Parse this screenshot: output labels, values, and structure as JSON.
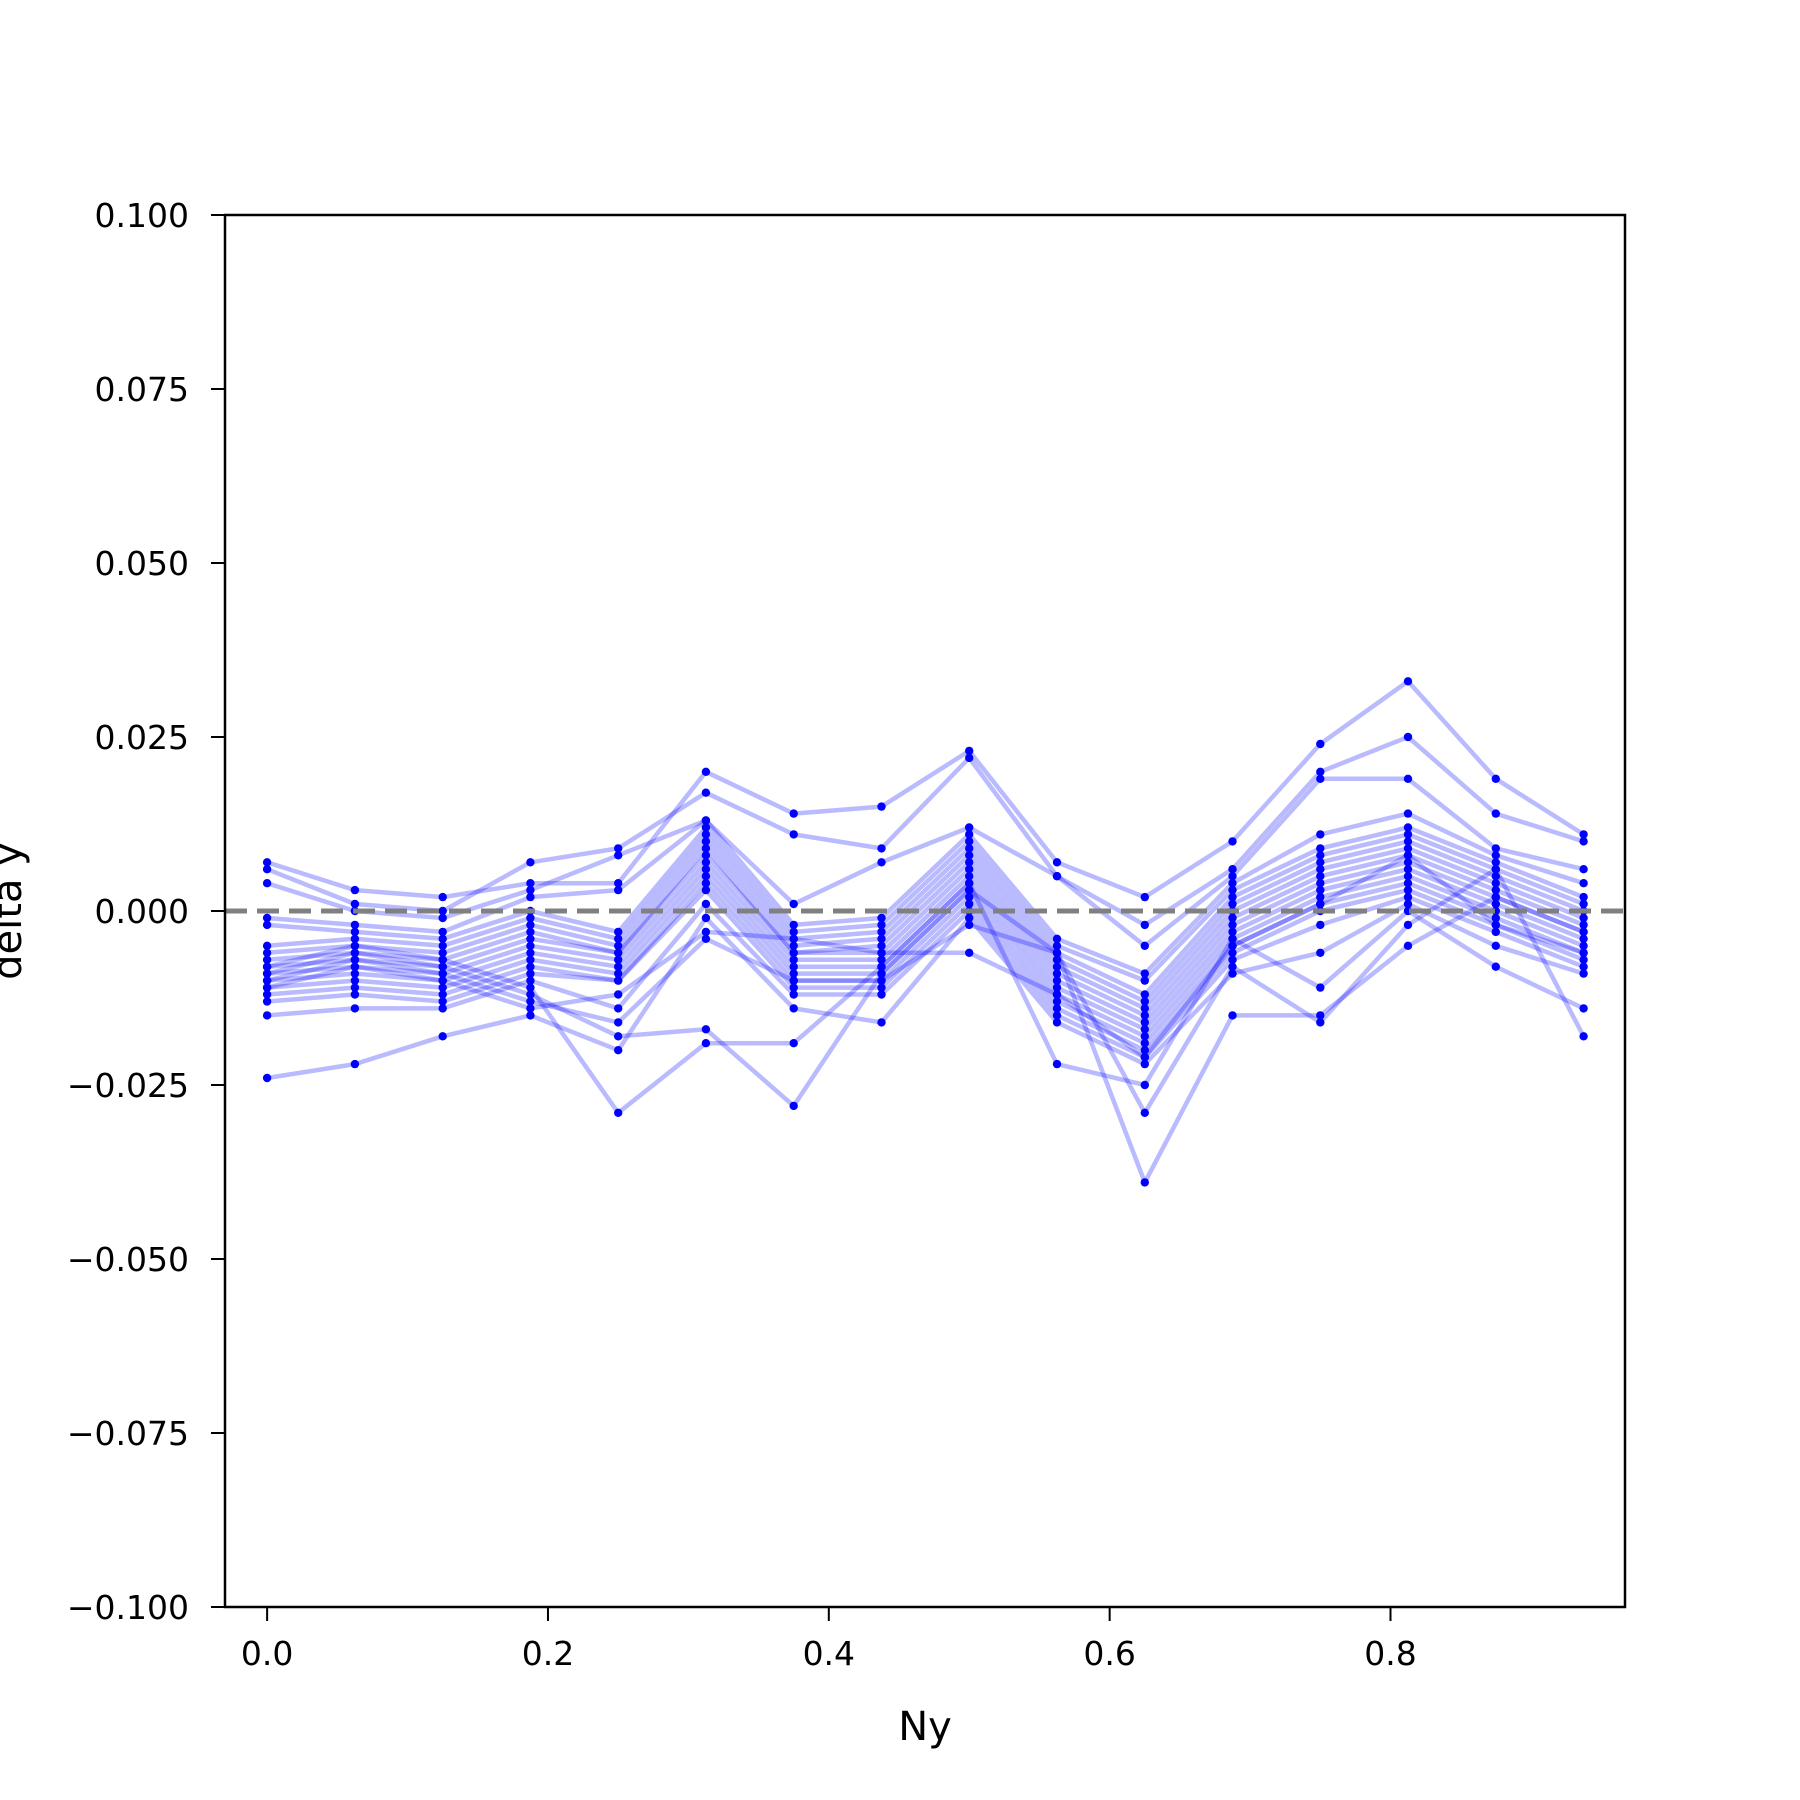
{
  "chart_data": {
    "type": "line",
    "title": "",
    "xlabel": "Ny",
    "ylabel": "delta y",
    "xlim": [
      -0.03,
      0.967
    ],
    "ylim": [
      -0.1,
      0.1
    ],
    "x_ticks": [
      0.0,
      0.2,
      0.4,
      0.6,
      0.8
    ],
    "x_tick_labels": [
      "0.0",
      "0.2",
      "0.4",
      "0.6",
      "0.8"
    ],
    "y_ticks": [
      0.1,
      0.075,
      0.05,
      0.025,
      0.0,
      -0.025,
      -0.05,
      -0.075,
      -0.1
    ],
    "y_tick_labels": [
      "0.100",
      "0.075",
      "0.050",
      "0.025",
      "0.000",
      "−0.025",
      "−0.050",
      "−0.075",
      "−0.100"
    ],
    "grid": false,
    "legend": "none",
    "reference_line": {
      "y": 0.0,
      "style": "dashed",
      "color": "#808080"
    },
    "series_color": "#0000ff",
    "x": [
      0.0,
      0.0625,
      0.125,
      0.1875,
      0.25,
      0.3125,
      0.375,
      0.4375,
      0.5,
      0.5625,
      0.625,
      0.6875,
      0.75,
      0.8125,
      0.875,
      0.9375
    ],
    "series": [
      {
        "values": [
          0.007,
          0.003,
          0.002,
          0.004,
          0.004,
          0.02,
          0.014,
          0.015,
          0.023,
          0.007,
          0.002,
          0.01,
          0.024,
          0.033,
          0.019,
          0.011
        ]
      },
      {
        "values": [
          0.006,
          0.001,
          0.0,
          0.007,
          0.009,
          0.017,
          0.011,
          0.009,
          0.022,
          0.005,
          -0.002,
          0.006,
          0.02,
          0.025,
          0.014,
          0.01
        ]
      },
      {
        "values": [
          0.004,
          0.0,
          -0.001,
          0.003,
          0.008,
          0.013,
          0.001,
          0.007,
          0.012,
          0.005,
          -0.005,
          0.005,
          0.019,
          0.019,
          0.009,
          0.006
        ]
      },
      {
        "values": [
          -0.001,
          -0.002,
          -0.003,
          0.002,
          0.003,
          0.013,
          -0.002,
          -0.001,
          0.011,
          -0.004,
          -0.009,
          0.004,
          0.011,
          0.014,
          0.008,
          0.004
        ]
      },
      {
        "values": [
          -0.002,
          -0.003,
          -0.004,
          0.0,
          -0.003,
          0.012,
          -0.003,
          -0.002,
          0.01,
          -0.005,
          -0.01,
          0.003,
          0.009,
          0.012,
          0.007,
          0.002
        ]
      },
      {
        "values": [
          -0.005,
          -0.004,
          -0.005,
          -0.001,
          -0.004,
          0.011,
          -0.004,
          -0.003,
          0.009,
          -0.006,
          -0.012,
          0.002,
          0.008,
          0.011,
          0.006,
          0.001
        ]
      },
      {
        "values": [
          -0.006,
          -0.005,
          -0.006,
          -0.002,
          -0.005,
          0.01,
          -0.005,
          -0.004,
          0.008,
          -0.007,
          -0.013,
          0.001,
          0.007,
          0.01,
          0.005,
          0.0
        ]
      },
      {
        "values": [
          -0.007,
          -0.006,
          -0.007,
          -0.003,
          -0.006,
          0.009,
          -0.006,
          -0.005,
          0.007,
          -0.008,
          -0.014,
          0.0,
          0.006,
          0.009,
          0.004,
          -0.001
        ]
      },
      {
        "values": [
          -0.008,
          -0.007,
          -0.008,
          -0.004,
          -0.006,
          0.008,
          -0.006,
          -0.006,
          0.006,
          -0.009,
          -0.015,
          -0.001,
          0.005,
          0.008,
          0.003,
          -0.002
        ]
      },
      {
        "values": [
          -0.009,
          -0.008,
          -0.009,
          -0.005,
          -0.007,
          0.007,
          -0.007,
          -0.007,
          0.005,
          -0.01,
          -0.016,
          -0.002,
          0.004,
          0.007,
          0.002,
          -0.003
        ]
      },
      {
        "values": [
          -0.01,
          -0.009,
          -0.01,
          -0.006,
          -0.008,
          0.006,
          -0.008,
          -0.008,
          0.004,
          -0.011,
          -0.017,
          -0.003,
          0.003,
          0.006,
          0.001,
          -0.004
        ]
      },
      {
        "values": [
          -0.011,
          -0.01,
          -0.011,
          -0.007,
          -0.009,
          0.005,
          -0.009,
          -0.009,
          0.003,
          -0.012,
          -0.018,
          -0.004,
          0.002,
          0.005,
          0.0,
          -0.005
        ]
      },
      {
        "values": [
          -0.012,
          -0.011,
          -0.012,
          -0.008,
          -0.01,
          0.004,
          -0.01,
          -0.01,
          0.002,
          -0.013,
          -0.019,
          -0.005,
          0.001,
          0.004,
          -0.001,
          -0.006
        ]
      },
      {
        "values": [
          -0.013,
          -0.012,
          -0.013,
          -0.009,
          -0.01,
          0.003,
          -0.011,
          -0.011,
          0.001,
          -0.014,
          -0.02,
          -0.006,
          0.0,
          0.003,
          -0.002,
          -0.007
        ]
      },
      {
        "values": [
          -0.015,
          -0.014,
          -0.014,
          -0.01,
          -0.014,
          0.001,
          -0.012,
          -0.012,
          0.0,
          -0.015,
          -0.021,
          -0.007,
          -0.002,
          0.002,
          -0.003,
          -0.008
        ]
      },
      {
        "values": [
          -0.024,
          -0.022,
          -0.018,
          -0.015,
          -0.02,
          -0.001,
          -0.014,
          -0.016,
          -0.001,
          -0.016,
          -0.022,
          -0.009,
          -0.006,
          0.001,
          -0.005,
          -0.009
        ]
      },
      {
        "values": [
          -0.008,
          -0.005,
          -0.007,
          -0.011,
          -0.029,
          -0.019,
          -0.019,
          -0.008,
          0.004,
          -0.022,
          -0.025,
          -0.004,
          -0.011,
          0.0,
          -0.008,
          -0.014
        ]
      },
      {
        "values": [
          -0.009,
          -0.006,
          -0.008,
          -0.012,
          -0.018,
          -0.017,
          -0.028,
          -0.009,
          0.003,
          -0.006,
          -0.029,
          -0.008,
          -0.016,
          -0.002,
          0.006,
          -0.018
        ]
      },
      {
        "values": [
          -0.01,
          -0.007,
          -0.009,
          -0.013,
          -0.016,
          -0.004,
          -0.01,
          -0.01,
          -0.002,
          -0.006,
          -0.039,
          -0.015,
          -0.015,
          -0.005,
          0.002,
          -0.003
        ]
      },
      {
        "values": [
          -0.011,
          -0.008,
          -0.01,
          -0.014,
          -0.012,
          -0.003,
          -0.004,
          -0.006,
          -0.006,
          -0.012,
          -0.021,
          -0.005,
          0.001,
          0.008,
          -0.002,
          -0.006
        ]
      }
    ]
  }
}
